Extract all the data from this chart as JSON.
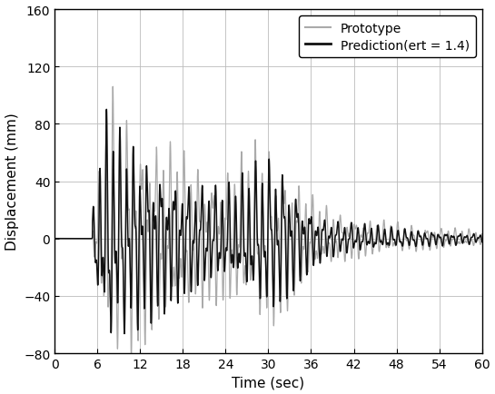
{
  "title": "",
  "xlabel": "Time (sec)",
  "ylabel": "Displacement (mm)",
  "xlim": [
    0,
    60
  ],
  "ylim": [
    -80,
    160
  ],
  "xticks": [
    0,
    6,
    12,
    18,
    24,
    30,
    36,
    42,
    48,
    54,
    60
  ],
  "yticks": [
    -80,
    -40,
    0,
    40,
    80,
    120,
    160
  ],
  "legend_entries": [
    "Prototype",
    "Prediction(ert = 1.4)"
  ],
  "proto_color": "#aaaaaa",
  "pred_color": "#111111",
  "proto_lw": 0.9,
  "pred_lw": 1.1,
  "background_color": "#ffffff",
  "grid_color": "#bbbbbb",
  "figsize": [
    5.45,
    4.35
  ],
  "dpi": 100
}
